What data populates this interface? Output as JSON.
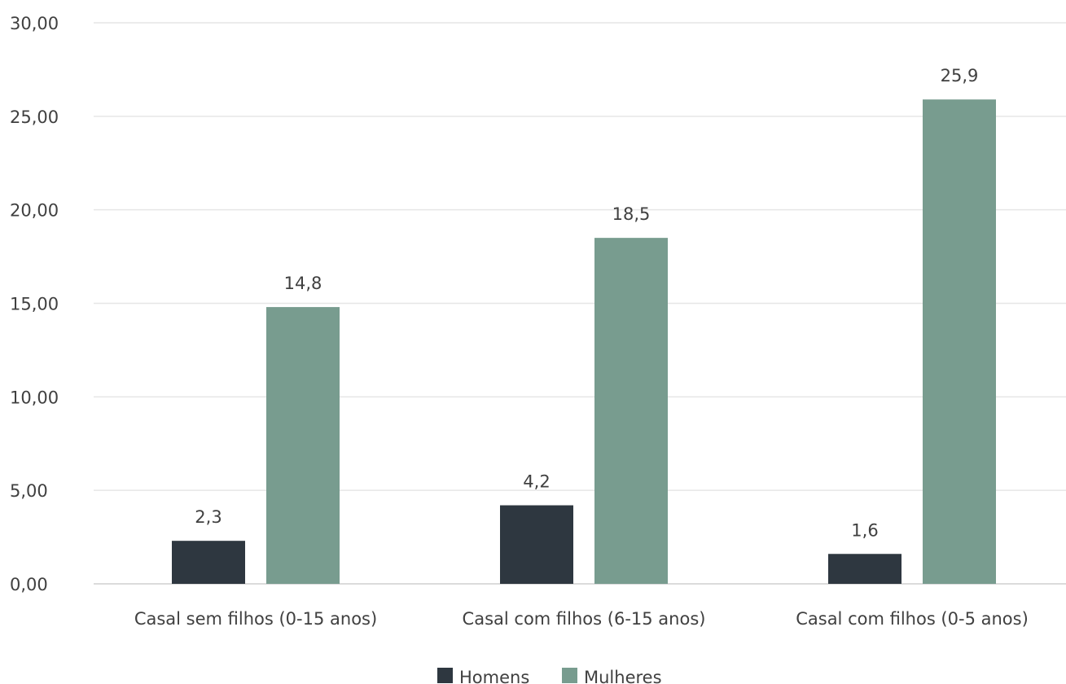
{
  "chart_data": {
    "type": "bar",
    "categories": [
      "Casal sem filhos (0-15 anos)",
      "Casal com filhos (6-15 anos)",
      "Casal com filhos (0-5 anos)"
    ],
    "series": [
      {
        "name": "Homens",
        "values": [
          2.3,
          4.2,
          1.6
        ],
        "labels": [
          "2,3",
          "4,2",
          "1,6"
        ],
        "color": "#2e3740"
      },
      {
        "name": "Mulheres",
        "values": [
          14.8,
          18.5,
          25.9
        ],
        "labels": [
          "14,8",
          "18,5",
          "25,9"
        ],
        "color": "#789c8f"
      }
    ],
    "ylim": [
      0,
      30
    ],
    "yticks": [
      0,
      5,
      10,
      15,
      20,
      25,
      30
    ],
    "ytick_labels": [
      "0,00",
      "5,00",
      "10,00",
      "15,00",
      "20,00",
      "25,00",
      "30,00"
    ],
    "title": "",
    "xlabel": "",
    "ylabel": "",
    "grid": true,
    "legend_position": "bottom-center"
  }
}
